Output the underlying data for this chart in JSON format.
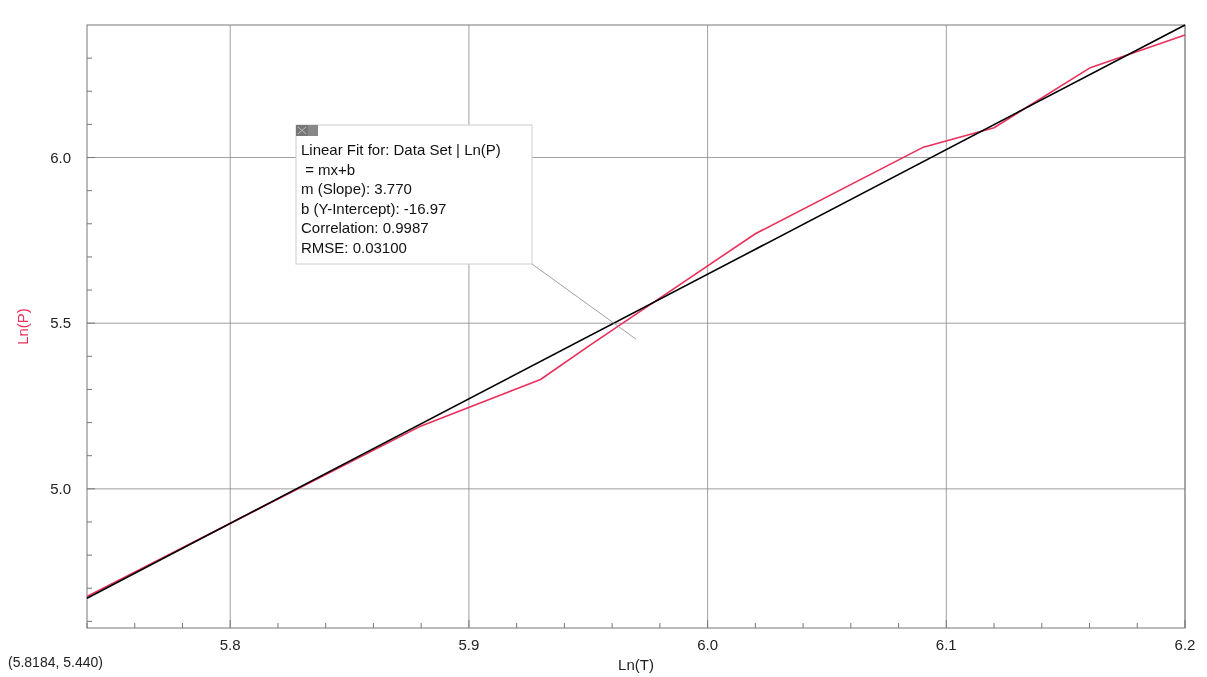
{
  "chart_data": {
    "type": "line",
    "xlabel": "Ln(T)",
    "ylabel": "Ln(P)",
    "xlim": [
      5.74,
      6.2
    ],
    "ylim": [
      4.58,
      6.4
    ],
    "xticks": [
      {
        "value": 5.74,
        "label": null
      },
      {
        "value": 5.76,
        "label": null
      },
      {
        "value": 5.78,
        "label": null
      },
      {
        "value": 5.8,
        "label": "5.8"
      },
      {
        "value": 5.82,
        "label": null
      },
      {
        "value": 5.84,
        "label": null
      },
      {
        "value": 5.86,
        "label": null
      },
      {
        "value": 5.88,
        "label": null
      },
      {
        "value": 5.9,
        "label": "5.9"
      },
      {
        "value": 5.92,
        "label": null
      },
      {
        "value": 5.94,
        "label": null
      },
      {
        "value": 5.96,
        "label": null
      },
      {
        "value": 5.98,
        "label": null
      },
      {
        "value": 6.0,
        "label": "6.0"
      },
      {
        "value": 6.02,
        "label": null
      },
      {
        "value": 6.04,
        "label": null
      },
      {
        "value": 6.06,
        "label": null
      },
      {
        "value": 6.08,
        "label": null
      },
      {
        "value": 6.1,
        "label": "6.1"
      },
      {
        "value": 6.12,
        "label": null
      },
      {
        "value": 6.14,
        "label": null
      },
      {
        "value": 6.16,
        "label": null
      },
      {
        "value": 6.18,
        "label": null
      },
      {
        "value": 6.2,
        "label": "6.2"
      }
    ],
    "yticks": [
      {
        "value": 4.6,
        "label": null
      },
      {
        "value": 4.7,
        "label": null
      },
      {
        "value": 4.8,
        "label": null
      },
      {
        "value": 4.9,
        "label": null
      },
      {
        "value": 5.0,
        "label": "5.0"
      },
      {
        "value": 5.1,
        "label": null
      },
      {
        "value": 5.2,
        "label": null
      },
      {
        "value": 5.3,
        "label": null
      },
      {
        "value": 5.4,
        "label": null
      },
      {
        "value": 5.5,
        "label": "5.5"
      },
      {
        "value": 5.6,
        "label": null
      },
      {
        "value": 5.7,
        "label": null
      },
      {
        "value": 5.8,
        "label": null
      },
      {
        "value": 5.9,
        "label": null
      },
      {
        "value": 6.0,
        "label": "6.0"
      },
      {
        "value": 6.1,
        "label": null
      },
      {
        "value": 6.2,
        "label": null
      },
      {
        "value": 6.3,
        "label": null
      }
    ],
    "grid": true,
    "series": [
      {
        "color": "#e8305a",
        "x": [
          5.74,
          5.88,
          5.93,
          5.95,
          6.02,
          6.09,
          6.12,
          6.16,
          6.2
        ],
        "values": [
          4.675,
          5.19,
          5.33,
          5.43,
          5.77,
          6.03,
          6.09,
          6.27,
          6.37
        ]
      },
      {
        "color": "#000000",
        "x": [
          5.74,
          6.2
        ],
        "values": [
          4.67,
          6.4
        ]
      }
    ],
    "annotations": [
      "Linear Fit for: Data Set | Ln(P)",
      " = mx+b",
      "m (Slope): 3.770",
      "b (Y-Intercept): -16.97",
      "Correlation: 0.9987",
      "RMSE: 0.03100",
      "(5.8184, 5.440)"
    ]
  }
}
